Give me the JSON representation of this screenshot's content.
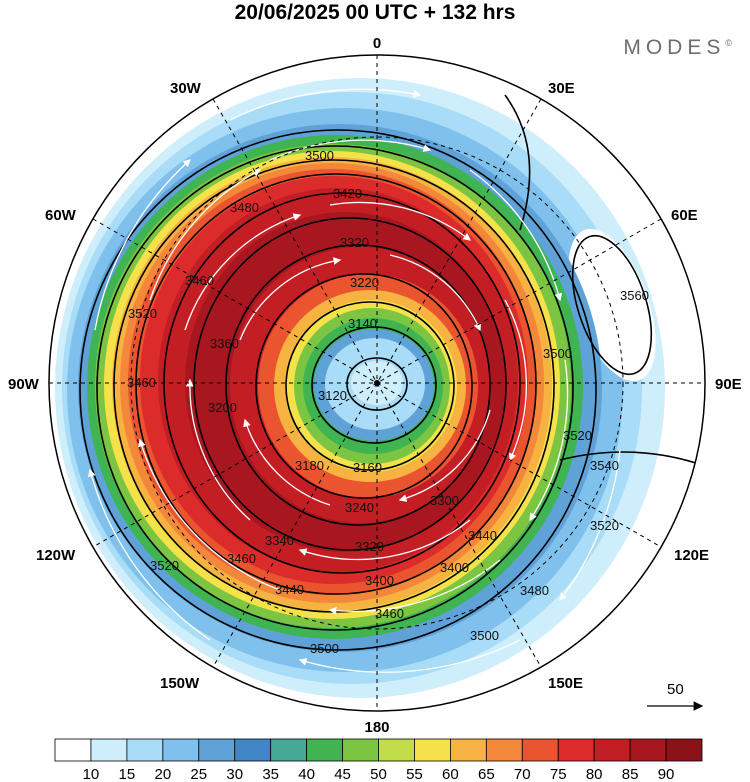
{
  "title": "20/06/2025  00 UTC  + 132 hrs",
  "brand": "MODES",
  "brand_mark": "©",
  "longitude_labels": {
    "top": "0",
    "bottom": "180",
    "left": "90W",
    "right": "90E",
    "upper_left": "30W",
    "upper_right": "30E",
    "mid_upper_left": "60W",
    "mid_upper_right": "60E",
    "lower_left": "120W",
    "lower_right": "120E",
    "bottom_left": "150W",
    "bottom_right": "150E"
  },
  "reference_vector": {
    "label": "50",
    "icon": "arrow-right-icon"
  },
  "colorbar": {
    "ticks": [
      "10",
      "15",
      "20",
      "25",
      "30",
      "35",
      "40",
      "45",
      "50",
      "55",
      "60",
      "65",
      "70",
      "75",
      "80",
      "85",
      "90"
    ],
    "colors": [
      "#ffffff",
      "#cfeefc",
      "#a9dcf6",
      "#7fc1ec",
      "#5ea2d8",
      "#3f86c6",
      "#46a896",
      "#3fb451",
      "#7cc542",
      "#c2dd4a",
      "#f5e24a",
      "#f7b341",
      "#f4883a",
      "#ea5530",
      "#dc2b2b",
      "#c41e25",
      "#a8171f",
      "#8c121a"
    ]
  },
  "contour_labels": [
    "3500",
    "3420",
    "3480",
    "3320",
    "3460",
    "3220",
    "3520",
    "3560",
    "3140",
    "3360",
    "3460",
    "3200",
    "3120",
    "3500",
    "3520",
    "3180",
    "3160",
    "3540",
    "3240",
    "3300",
    "3340",
    "3320",
    "3440",
    "3520",
    "3400",
    "3460",
    "3400",
    "3440",
    "3480",
    "3460",
    "3520",
    "3500",
    "3500"
  ]
}
